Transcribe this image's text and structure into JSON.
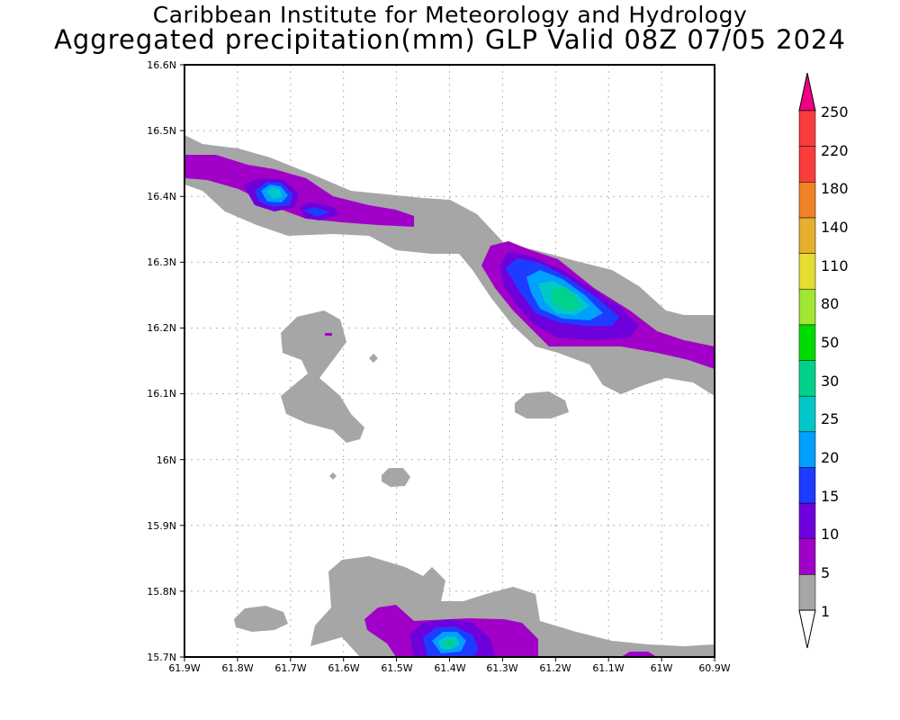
{
  "header": {
    "institution": "Caribbean Institute for Meteorology and Hydrology",
    "product": "Aggregated precipitation(mm) GLP Valid 08Z 07/05 2024"
  },
  "map": {
    "lon_range": [
      -61.9,
      -60.9
    ],
    "lat_range": [
      15.7,
      16.6
    ],
    "x_tick_labels": [
      "61.9W",
      "61.8W",
      "61.7W",
      "61.6W",
      "61.5W",
      "61.4W",
      "61.3W",
      "61.2W",
      "61.1W",
      "61W",
      "60.9W"
    ],
    "y_tick_labels": [
      "15.7N",
      "15.8N",
      "15.9N",
      "16N",
      "16.1N",
      "16.2N",
      "16.3N",
      "16.4N",
      "16.5N",
      "16.6N"
    ],
    "grid": true
  },
  "colorbar": {
    "levels": [
      "1",
      "5",
      "10",
      "15",
      "20",
      "25",
      "30",
      "50",
      "80",
      "110",
      "140",
      "180",
      "220",
      "250"
    ],
    "colors": [
      "#a6a6a6",
      "#a000c8",
      "#6e00dc",
      "#1e3cff",
      "#00a0ff",
      "#00c8c8",
      "#00d28c",
      "#00dc00",
      "#a0e632",
      "#e6dc32",
      "#e6af2d",
      "#f08228",
      "#fa3c3c",
      "#f00082"
    ],
    "below_color": "#ffffff"
  },
  "colors": {
    "gray": "#a6a6a6",
    "purple": "#a000c8",
    "violet": "#6e00dc",
    "blue": "#1e3cff",
    "sky": "#00a0ff",
    "cyan": "#00c8c8",
    "teal": "#00d28c"
  }
}
